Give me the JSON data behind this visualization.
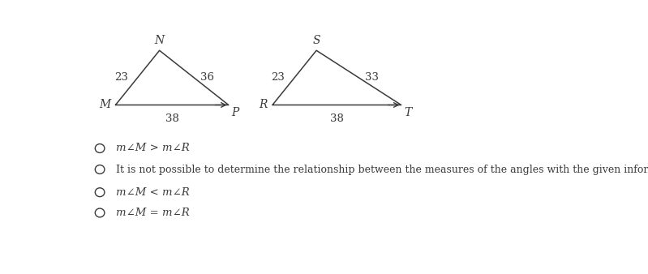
{
  "triangle1": {
    "M": [
      0.55,
      0.52
    ],
    "N": [
      1.25,
      1.45
    ],
    "P": [
      2.35,
      0.52
    ],
    "label_M": "M",
    "label_N": "N",
    "label_P": "P",
    "side_MN": "23",
    "side_NP": "36",
    "side_MP": "38"
  },
  "triangle2": {
    "R": [
      3.05,
      0.52
    ],
    "S": [
      3.75,
      1.45
    ],
    "T": [
      5.1,
      0.52
    ],
    "label_R": "R",
    "label_S": "S",
    "label_T": "T",
    "side_RS": "23",
    "side_ST": "33",
    "side_RT": "38"
  },
  "choices": [
    "m∠M > m∠R",
    "It is not possible to determine the relationship between the measures of the angles with the given information.",
    "m∠M < m∠R",
    "m∠M = m∠R"
  ],
  "choice_italic": [
    true,
    false,
    true,
    true
  ],
  "bg_color": "#ffffff",
  "line_color": "#3a3a3a",
  "text_color": "#3a3a3a",
  "xlim": [
    0,
    8.0
  ],
  "ylim": [
    -1.85,
    1.75
  ]
}
